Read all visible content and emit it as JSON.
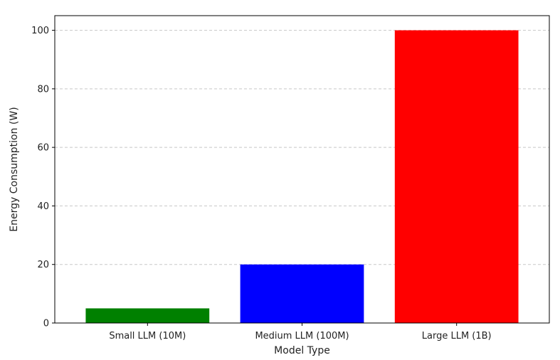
{
  "chart_data": {
    "type": "bar",
    "title": "",
    "xlabel": "Model Type",
    "ylabel": "Energy Consumption (W)",
    "categories": [
      "Small LLM (10M)",
      "Medium LLM (100M)",
      "Large LLM (1B)"
    ],
    "values": [
      5,
      20,
      100
    ],
    "colors": [
      "#008000",
      "#0000ff",
      "#ff0000"
    ],
    "ylim": [
      0,
      105
    ],
    "yticks": [
      0,
      20,
      40,
      60,
      80,
      100
    ],
    "grid": {
      "axis": "y",
      "style": "dashed",
      "color": "#c8c8c8"
    },
    "legend": "none"
  }
}
